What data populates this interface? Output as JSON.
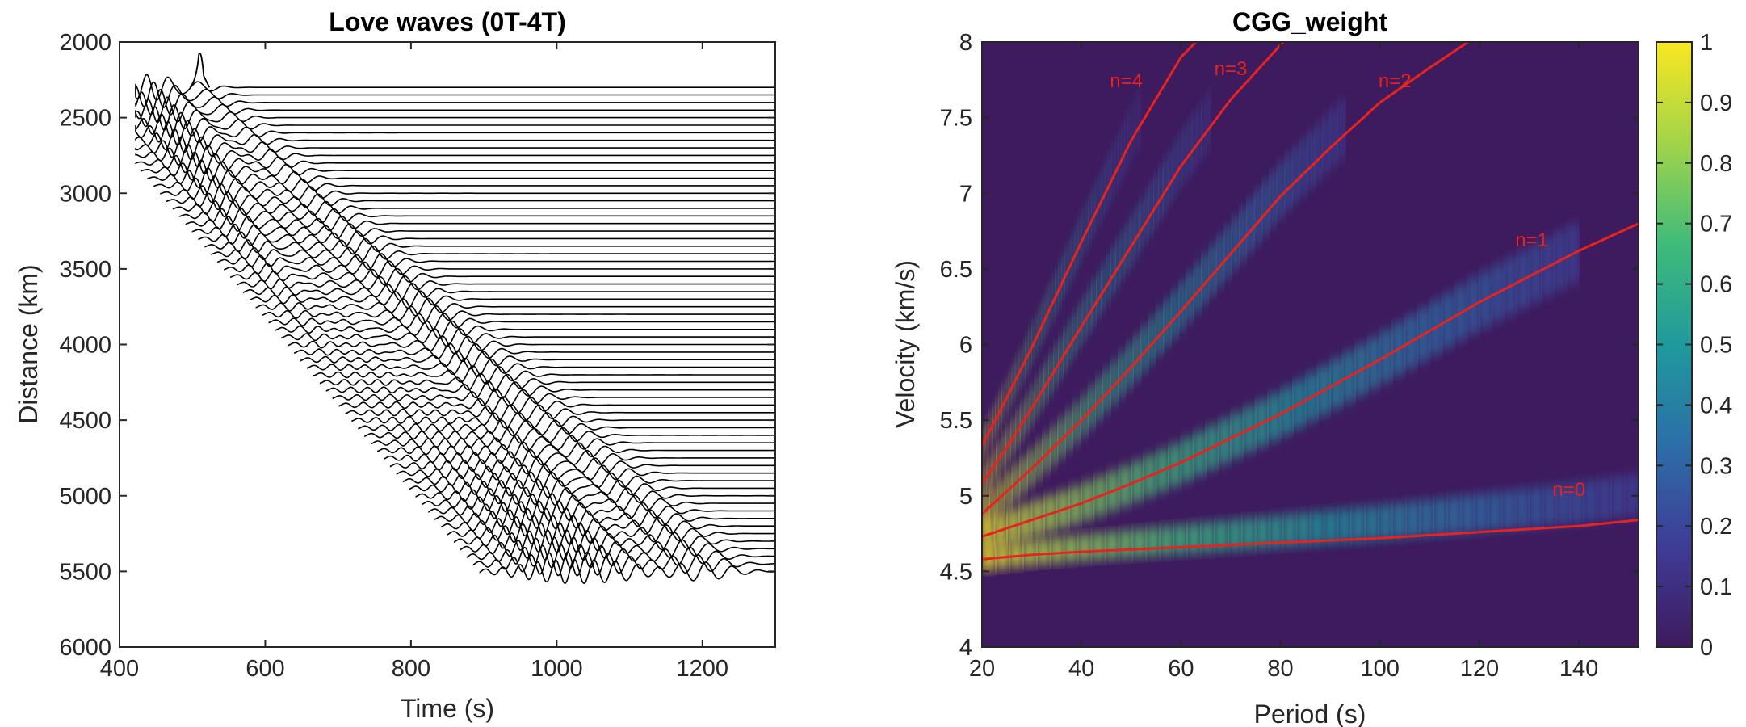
{
  "chart_data": [
    {
      "type": "line",
      "title": "Love waves (0T-4T)",
      "xlabel": "Time (s)",
      "ylabel": "Distance (km)",
      "xlim": [
        400,
        1300
      ],
      "ylim": [
        2000,
        6000
      ],
      "y_reversed": true,
      "xticks": [
        400,
        600,
        800,
        1000,
        1200
      ],
      "yticks": [
        2000,
        2500,
        3000,
        3500,
        4000,
        4500,
        5000,
        5500,
        6000
      ],
      "xtick_labels": [
        "400",
        "600",
        "800",
        "1000",
        "1200"
      ],
      "ytick_labels": [
        "2000",
        "2500",
        "3000",
        "3500",
        "4000",
        "4500",
        "5000",
        "5500",
        "6000"
      ],
      "traces": {
        "distance_start_km": 2300,
        "distance_end_km": 5500,
        "count": 65,
        "trace_color": "#000000",
        "mode_group_velocities_kms": [
          4.6,
          4.95,
          5.2,
          5.45,
          5.7
        ],
        "first_arrival_peak": {
          "time_s": 510,
          "distance_km": 2050
        }
      }
    },
    {
      "type": "heatmap",
      "title": "CGG_weight",
      "xlabel": "Period (s)",
      "ylabel": "Velocity (km/s)",
      "xlim": [
        20,
        152
      ],
      "ylim": [
        4,
        8
      ],
      "xticks": [
        20,
        40,
        60,
        80,
        100,
        120,
        140
      ],
      "yticks": [
        4,
        4.5,
        5,
        5.5,
        6,
        6.5,
        7,
        7.5,
        8
      ],
      "xtick_labels": [
        "20",
        "40",
        "60",
        "80",
        "100",
        "120",
        "140"
      ],
      "ytick_labels": [
        "4",
        "4.5",
        "5",
        "5.5",
        "6",
        "6.5",
        "7",
        "7.5",
        "8"
      ],
      "colormap": "parula-like (dark purple to yellow)",
      "colorbar": {
        "range": [
          0,
          1
        ],
        "ticks": [
          0,
          0.1,
          0.2,
          0.3,
          0.4,
          0.5,
          0.6,
          0.7,
          0.8,
          0.9,
          1
        ],
        "tick_labels": [
          "0",
          "0.1",
          "0.2",
          "0.3",
          "0.4",
          "0.5",
          "0.6",
          "0.7",
          "0.8",
          "0.9",
          "1"
        ],
        "stops": [
          "#3e1a5e",
          "#3f3c96",
          "#2c6ea8",
          "#1f9a9c",
          "#3fbb7a",
          "#a2d44a",
          "#f9e721"
        ]
      },
      "background_color": "#3e1a5e",
      "curve_color": "#e8231e",
      "series": [
        {
          "name": "n=0",
          "x": [
            20,
            30,
            40,
            60,
            80,
            100,
            120,
            140,
            152
          ],
          "y": [
            4.58,
            4.61,
            4.63,
            4.66,
            4.69,
            4.72,
            4.76,
            4.8,
            4.84
          ]
        },
        {
          "name": "n=1",
          "x": [
            20,
            30,
            40,
            50,
            60,
            70,
            80,
            90,
            100,
            110,
            120,
            130,
            140,
            152
          ],
          "y": [
            4.73,
            4.84,
            4.95,
            5.08,
            5.22,
            5.38,
            5.54,
            5.72,
            5.9,
            6.09,
            6.28,
            6.45,
            6.62,
            6.8
          ]
        },
        {
          "name": "n=2",
          "x": [
            20,
            30,
            40,
            50,
            60,
            70,
            80,
            90,
            100,
            110,
            120,
            125
          ],
          "y": [
            4.88,
            5.18,
            5.5,
            5.85,
            6.22,
            6.6,
            6.98,
            7.3,
            7.6,
            7.83,
            8.05,
            8.15
          ]
        },
        {
          "name": "n=3",
          "x": [
            20,
            25,
            30,
            40,
            50,
            60,
            70,
            80,
            85
          ],
          "y": [
            5.08,
            5.32,
            5.58,
            6.12,
            6.65,
            7.18,
            7.62,
            7.98,
            8.15
          ]
        },
        {
          "name": "n=4",
          "x": [
            20,
            25,
            30,
            40,
            50,
            60,
            66
          ],
          "y": [
            5.33,
            5.65,
            5.98,
            6.68,
            7.35,
            7.9,
            8.1
          ]
        }
      ],
      "mode_labels": [
        {
          "text": "n=4",
          "x": 49,
          "y": 7.7
        },
        {
          "text": "n=3",
          "x": 70,
          "y": 7.78
        },
        {
          "text": "n=2",
          "x": 103,
          "y": 7.7
        },
        {
          "text": "n=1",
          "x": 130.5,
          "y": 6.65
        },
        {
          "text": "n=0",
          "x": 138,
          "y": 5.0
        }
      ],
      "energy_bands": [
        {
          "centerline": "n=0",
          "offset": 0.17,
          "width": 0.14,
          "xmin": 20,
          "xmax": 152
        },
        {
          "centerline": "n=1",
          "offset": 0.0,
          "width": 0.2,
          "xmin": 20,
          "xmax": 140
        },
        {
          "centerline": "n=2",
          "offset": 0.05,
          "width": 0.2,
          "xmin": 20,
          "xmax": 93
        },
        {
          "centerline": "n=3",
          "offset": 0.05,
          "width": 0.2,
          "xmin": 20,
          "xmax": 66
        },
        {
          "centerline": "n=4",
          "offset": 0.05,
          "width": 0.2,
          "xmin": 20,
          "xmax": 52
        }
      ]
    }
  ]
}
